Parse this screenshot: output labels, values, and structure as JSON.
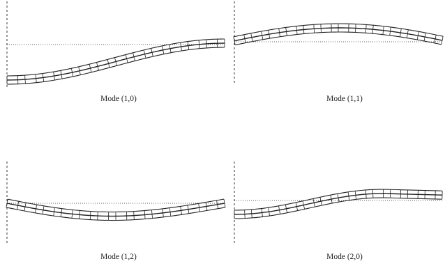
{
  "panels": [
    {
      "caption": "Mode (1,0)"
    },
    {
      "caption": "Mode (1,1)"
    },
    {
      "caption": "Mode (1,2)"
    },
    {
      "caption": "Mode (2,0)"
    }
  ],
  "colors": {
    "stroke": "#222222",
    "background": "#ffffff"
  }
}
